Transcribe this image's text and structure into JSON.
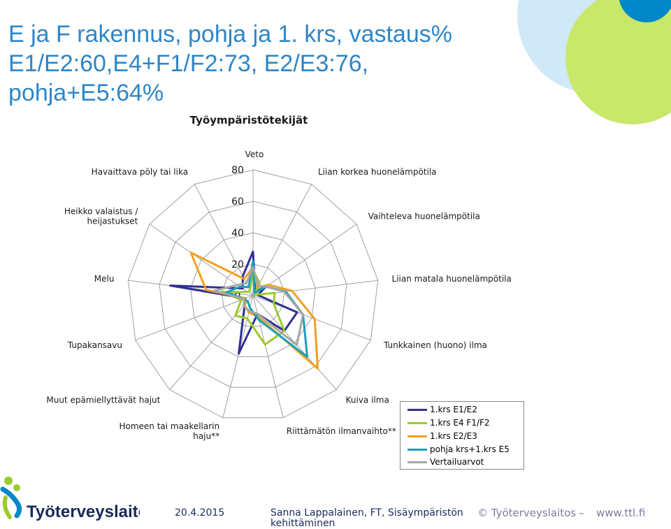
{
  "slide": {
    "title_lines": [
      "E ja F rakennus, pohja ja 1. krs, vastaus%",
      "E1/E2:60,E4+F1/F2:73, E2/E3:76,",
      "pohja+E5:64%"
    ],
    "colors": {
      "title": "#2e86c8",
      "grid": "#a0a0a0",
      "circle_cyan": "#cfe9f6",
      "circle_green": "#c9e86a",
      "circle_blue": "#0087c8"
    }
  },
  "chart_data": {
    "type": "radar",
    "title": "Työympäristötekijät",
    "categories": [
      "Veto",
      "Liian korkea huonelämpötila",
      "Vaihteleva huonelämpötila",
      "Liian matala huonelämpötila",
      "Tunkkainen (huono) ilma",
      "Kuiva ilma",
      "Riittämätön ilmanvaihto**",
      "Homeen tai maakellarin haju**",
      "Muut epämiellyttävät hajut",
      "Tupakansavu",
      "Melu",
      "Heikko valaistus / heijastukset",
      "Havaittava pöly tai lika"
    ],
    "rmax": 80,
    "ticks": [
      0,
      20,
      40,
      60,
      80
    ],
    "tick_labels": [
      "0",
      "20",
      "40",
      "60",
      "80"
    ],
    "series": [
      {
        "name": "1.krs E1/E2",
        "color": "#2e3192",
        "values": [
          28,
          3,
          10,
          3,
          30,
          30,
          12,
          38,
          8,
          5,
          53,
          8,
          14
        ]
      },
      {
        "name": "1.krs E4 F1/F2",
        "color": "#9dcb2c",
        "values": [
          16,
          9,
          1,
          14,
          14,
          30,
          32,
          15,
          17,
          8,
          20,
          4,
          4
        ]
      },
      {
        "name": "1.krs E2/E3",
        "color": "#f0a020",
        "values": [
          18,
          6,
          12,
          25,
          42,
          62,
          14,
          11,
          8,
          5,
          30,
          48,
          12
        ]
      },
      {
        "name": "pohja krs+1.krs E5",
        "color": "#1aa0b8",
        "values": [
          22,
          2,
          10,
          21,
          34,
          52,
          16,
          8,
          5,
          6,
          17,
          10,
          6
        ]
      },
      {
        "name": "Vertailuarvot",
        "color": "#a6a6a6",
        "values": [
          18,
          7,
          10,
          20,
          34,
          42,
          12,
          10,
          9,
          6,
          25,
          12,
          9
        ]
      }
    ]
  },
  "footer": {
    "logo_text": "Työterveyslaitos",
    "date": "20.4.2015",
    "author_line1": "Sanna Lappalainen, FT, Sisäympäristön",
    "author_line2": "kehittäminen",
    "copyright": "© Työterveyslaitos",
    "dash": "–",
    "url": "www.ttl.fi"
  }
}
